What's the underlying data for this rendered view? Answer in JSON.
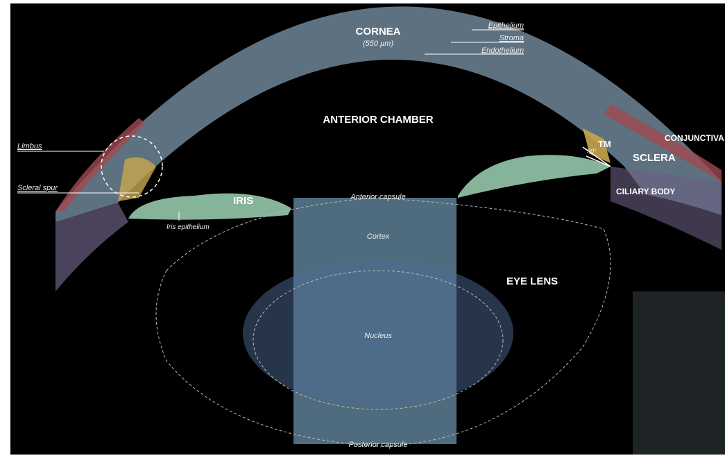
{
  "title": "CORNEA",
  "cornea_thickness": "(550 µm)",
  "cornea_layers": [
    "Epithelium",
    "Stroma",
    "Endothelium"
  ],
  "regions": {
    "anterior_chamber": "ANTERIOR CHAMBER",
    "conjunctiva": "CONJUNCTIVA",
    "sclera": "SCLERA",
    "tm": "TM",
    "angle": "30°",
    "ciliary_body": "CILIARY BODY",
    "iris": "IRIS",
    "eye_lens": "EYE LENS"
  },
  "annotations": {
    "limbus": "Limbus",
    "scleral_spur": "Scleral spur",
    "iris_epithelium": "Iris epithelium",
    "anterior_capsule": "Anterior capsule",
    "cortex": "Cortex",
    "nucleus": "Nucleus",
    "posterior_capsule": "Posterior capsule"
  }
}
